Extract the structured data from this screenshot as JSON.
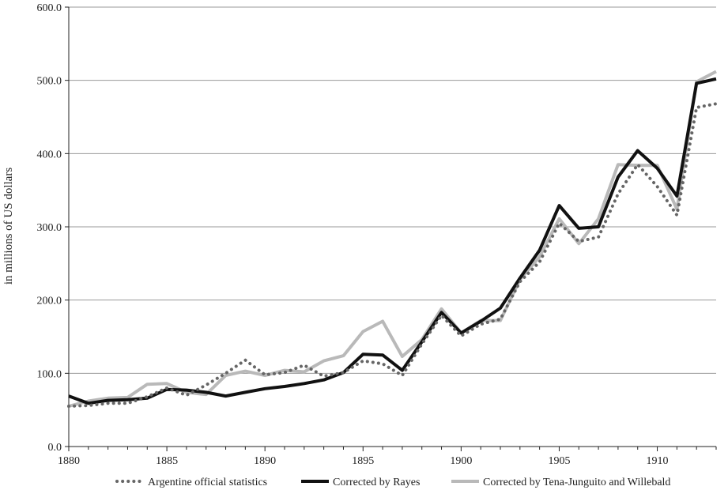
{
  "chart_data": {
    "type": "line",
    "title": "",
    "xlabel": "",
    "ylabel": "in millions of US dollars",
    "xlim": [
      1880,
      1913
    ],
    "ylim": [
      0,
      600
    ],
    "x_ticks": [
      1880,
      1885,
      1890,
      1895,
      1900,
      1905,
      1910
    ],
    "y_ticks": [
      "0.0",
      "100.0",
      "200.0",
      "300.0",
      "400.0",
      "500.0",
      "600.0"
    ],
    "grid": "horizontal",
    "legend_position": "bottom",
    "x": [
      1880,
      1881,
      1882,
      1883,
      1884,
      1885,
      1886,
      1887,
      1888,
      1889,
      1890,
      1891,
      1892,
      1893,
      1894,
      1895,
      1896,
      1897,
      1898,
      1899,
      1900,
      1901,
      1902,
      1903,
      1904,
      1905,
      1906,
      1907,
      1908,
      1909,
      1910,
      1911,
      1912,
      1913
    ],
    "series": [
      {
        "name": "Argentine official statistics",
        "color": "#666666",
        "style": "dotted",
        "values": [
          55,
          56,
          59,
          59,
          68,
          80,
          70,
          84,
          100,
          118,
          98,
          101,
          111,
          96,
          101,
          117,
          113,
          97,
          140,
          179,
          151,
          167,
          174,
          225,
          252,
          305,
          280,
          286,
          345,
          385,
          355,
          316,
          463,
          468
        ]
      },
      {
        "name": "Corrected by Rayes",
        "color": "#111111",
        "style": "solid",
        "values": [
          69,
          59,
          63,
          64,
          66,
          78,
          77,
          74,
          69,
          74,
          79,
          82,
          86,
          91,
          101,
          126,
          125,
          104,
          143,
          183,
          155,
          171,
          189,
          230,
          268,
          329,
          298,
          300,
          368,
          404,
          380,
          342,
          496,
          502
        ]
      },
      {
        "name": "Corrected by Tena-Junguito and Willebald",
        "color": "#b9b9b9",
        "style": "solid",
        "values": [
          55,
          62,
          66,
          67,
          85,
          86,
          74,
          71,
          97,
          103,
          97,
          104,
          102,
          117,
          124,
          157,
          171,
          123,
          146,
          188,
          155,
          172,
          172,
          228,
          259,
          311,
          277,
          311,
          385,
          384,
          384,
          324,
          498,
          512
        ]
      }
    ]
  }
}
